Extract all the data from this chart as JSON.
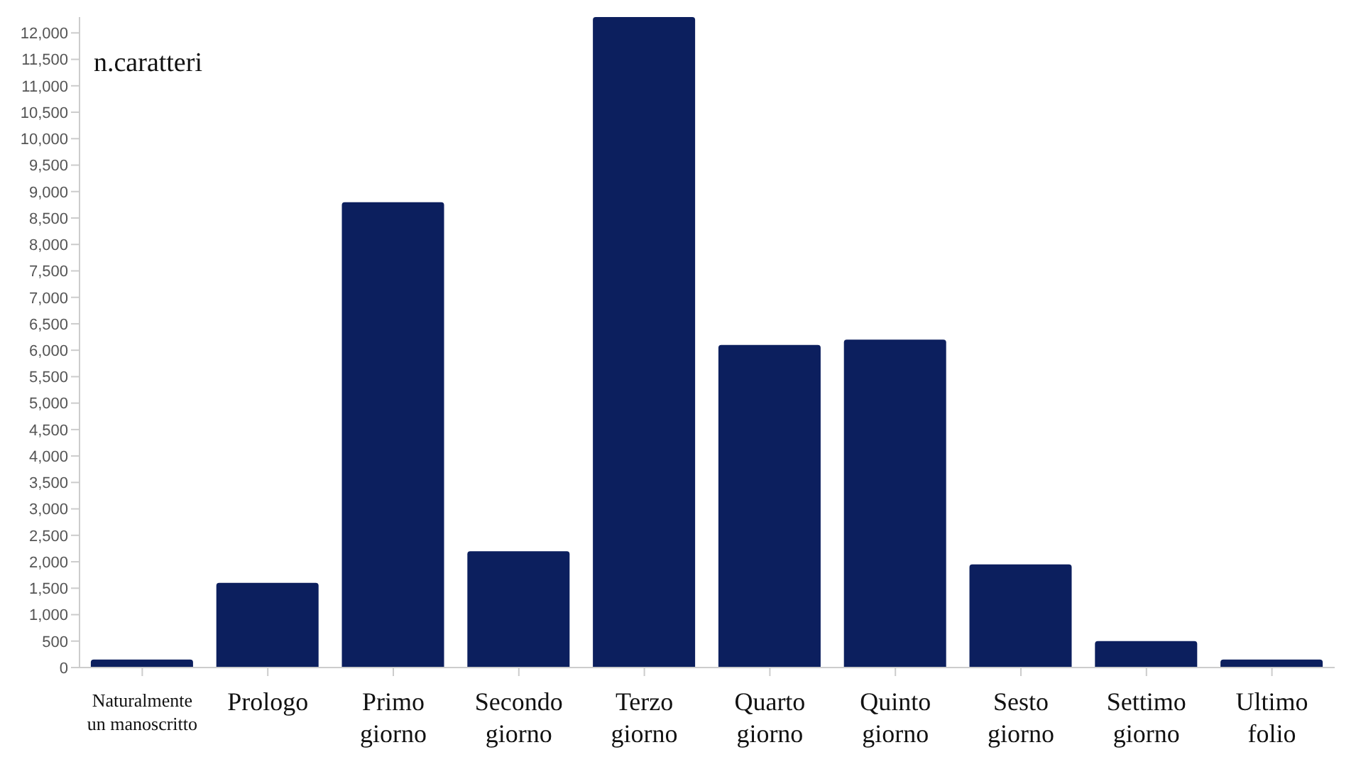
{
  "chart_data": {
    "type": "bar",
    "ylabel": "n.caratteri",
    "categories": [
      "Naturalmente un manoscritto",
      "Prologo",
      "Primo giorno",
      "Secondo giorno",
      "Terzo giorno",
      "Quarto giorno",
      "Quinto giorno",
      "Sesto giorno",
      "Settimo giorno",
      "Ultimo folio"
    ],
    "values": [
      150,
      1600,
      8800,
      2200,
      12300,
      6100,
      6200,
      1950,
      500,
      150
    ],
    "color": "#0c1f5e",
    "ylim": [
      0,
      12300
    ],
    "yticks": [
      {
        "value": 0,
        "label": "0"
      },
      {
        "value": 500,
        "label": "500"
      },
      {
        "value": 1000,
        "label": "1,000"
      },
      {
        "value": 1500,
        "label": "1,500"
      },
      {
        "value": 2000,
        "label": "2,000"
      },
      {
        "value": 2500,
        "label": "2,500"
      },
      {
        "value": 3000,
        "label": "3,000"
      },
      {
        "value": 3500,
        "label": "3,500"
      },
      {
        "value": 4000,
        "label": "4,000"
      },
      {
        "value": 4500,
        "label": "4,500"
      },
      {
        "value": 5000,
        "label": "5,000"
      },
      {
        "value": 5500,
        "label": "5,500"
      },
      {
        "value": 6000,
        "label": "6,000"
      },
      {
        "value": 6500,
        "label": "6,500"
      },
      {
        "value": 7000,
        "label": "7,000"
      },
      {
        "value": 7500,
        "label": "7,500"
      },
      {
        "value": 8000,
        "label": "8,000"
      },
      {
        "value": 8500,
        "label": "8,500"
      },
      {
        "value": 9000,
        "label": "9,000"
      },
      {
        "value": 9500,
        "label": "9,500"
      },
      {
        "value": 10000,
        "label": "10,000"
      },
      {
        "value": 10500,
        "label": "10,500"
      },
      {
        "value": 11000,
        "label": "11,000"
      },
      {
        "value": 11500,
        "label": "11,500"
      },
      {
        "value": 12000,
        "label": "12,000"
      }
    ],
    "grid": false,
    "legend": false
  }
}
